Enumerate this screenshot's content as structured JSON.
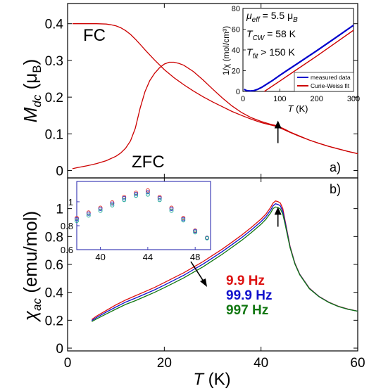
{
  "colors": {
    "fc_zfc": "#cc0000",
    "f1": "#dd1111",
    "f2": "#1111cc",
    "f3": "#117711",
    "inset_meas": "#0000cc",
    "inset_fit": "#cc0000"
  },
  "chart_data": [
    {
      "id": "mdc",
      "type": "line",
      "xlim": [
        0,
        60
      ],
      "ylim": [
        -0.02,
        0.455
      ],
      "yticks": [
        0,
        0.1,
        0.2,
        0.3,
        0.4
      ],
      "ytick_labels": [
        "0",
        "0.1",
        "0.2",
        "0.3",
        "0.4"
      ],
      "ylabel_main": "M",
      "ylabel_sub": "dc",
      "ylabel_unit_open": " (μ",
      "ylabel_unit_sub": "B",
      "ylabel_unit_close": ")",
      "panel_label": "a)",
      "annotations": {
        "fc": "FC",
        "zfc": "ZFC"
      },
      "arrow_at": [
        43.5,
        0.14
      ],
      "series": [
        {
          "name": "FC",
          "x": [
            1,
            2,
            4,
            6,
            8,
            9,
            10,
            11,
            12,
            13,
            14,
            15,
            16,
            18,
            20,
            22,
            24,
            26,
            28,
            30,
            32,
            34,
            36,
            38,
            40,
            42,
            43,
            44,
            45,
            46,
            48,
            50,
            52,
            54,
            56,
            58,
            60
          ],
          "y": [
            0.4,
            0.4,
            0.4,
            0.4,
            0.399,
            0.397,
            0.394,
            0.389,
            0.381,
            0.371,
            0.358,
            0.344,
            0.329,
            0.301,
            0.275,
            0.253,
            0.234,
            0.217,
            0.201,
            0.187,
            0.174,
            0.161,
            0.15,
            0.14,
            0.131,
            0.124,
            0.121,
            0.116,
            0.11,
            0.104,
            0.093,
            0.083,
            0.074,
            0.066,
            0.059,
            0.052,
            0.046
          ]
        },
        {
          "name": "ZFC",
          "x": [
            1,
            2,
            4,
            6,
            8,
            10,
            11,
            12,
            13,
            14,
            15,
            16,
            17,
            18,
            19,
            20,
            21,
            22,
            23,
            24,
            26,
            28,
            30,
            32,
            34,
            36,
            38,
            40,
            42,
            43,
            44,
            45,
            46,
            48,
            50,
            52,
            54,
            56,
            58,
            60
          ],
          "y": [
            0.005,
            0.008,
            0.013,
            0.019,
            0.027,
            0.039,
            0.048,
            0.061,
            0.081,
            0.115,
            0.17,
            0.215,
            0.245,
            0.265,
            0.28,
            0.29,
            0.295,
            0.295,
            0.292,
            0.287,
            0.27,
            0.247,
            0.222,
            0.198,
            0.176,
            0.158,
            0.144,
            0.134,
            0.126,
            0.123,
            0.118,
            0.112,
            0.105,
            0.094,
            0.083,
            0.074,
            0.066,
            0.059,
            0.052,
            0.046
          ]
        }
      ]
    },
    {
      "id": "mdc_inset",
      "type": "line",
      "xlim": [
        0,
        300
      ],
      "ylim": [
        0,
        80
      ],
      "xticks": [
        0,
        100,
        200,
        300
      ],
      "xtick_labels": [
        "0",
        "100",
        "200",
        "300"
      ],
      "yticks": [
        0,
        20,
        40,
        60,
        80
      ],
      "ytick_labels": [
        "0",
        "20",
        "40",
        "60",
        "80"
      ],
      "xlabel_main": "T",
      "xlabel_unit": " (K)",
      "ylabel": "1/χ (mol/cm³)",
      "params": {
        "mu_main": "μ",
        "mu_sub": "eff",
        "mu_value": " = 5.5 μ",
        "mu_value_sub": "B",
        "tcw_main": "T",
        "tcw_sub": "CW",
        "tcw_value": " = 58 K",
        "tfit_main": "T",
        "tfit_sub": "fit",
        "tfit_value": " > 150 K"
      },
      "series": [
        {
          "name": "measured data",
          "x": [
            3,
            10,
            20,
            30,
            40,
            50,
            60,
            70,
            80,
            100,
            120,
            150,
            200,
            250,
            300
          ],
          "y": [
            2,
            0.8,
            0.5,
            0.8,
            2,
            3.8,
            6,
            8.3,
            10.5,
            15.5,
            20.3,
            27.3,
            39.2,
            51.4,
            63.8
          ]
        },
        {
          "name": "Curie-Weiss fit",
          "x": [
            58,
            100,
            150,
            200,
            250,
            300
          ],
          "y": [
            0,
            10,
            22,
            34,
            46.5,
            59
          ]
        }
      ]
    },
    {
      "id": "chiac",
      "type": "line",
      "xlim": [
        0,
        60
      ],
      "ylim": [
        -0.02,
        1.22
      ],
      "xticks": [
        0,
        20,
        40,
        60
      ],
      "xtick_labels": [
        "0",
        "20",
        "40",
        "60"
      ],
      "yticks": [
        0,
        0.2,
        0.4,
        0.6,
        0.8,
        1
      ],
      "ytick_labels": [
        "0",
        "0.2",
        "0.4",
        "0.6",
        "0.8",
        "1"
      ],
      "xlabel_main": "T",
      "xlabel_unit": " (K)",
      "ylabel_main": "χ",
      "ylabel_sub": "ac",
      "ylabel_unit": " (emu/mol)",
      "panel_label": "b)",
      "arrow_at": [
        43.5,
        0.86
      ],
      "series": [
        {
          "name": "9.9 Hz",
          "x": [
            5,
            6,
            8,
            10,
            12,
            14,
            16,
            18,
            20,
            22,
            24,
            26,
            28,
            30,
            32,
            34,
            36,
            38,
            40,
            41,
            42,
            42.5,
            43,
            43.5,
            44,
            44.5,
            45,
            46,
            47,
            48,
            50,
            52,
            54,
            56,
            58,
            60
          ],
          "y": [
            0.205,
            0.23,
            0.27,
            0.31,
            0.345,
            0.375,
            0.405,
            0.435,
            0.47,
            0.505,
            0.54,
            0.58,
            0.62,
            0.665,
            0.71,
            0.76,
            0.81,
            0.865,
            0.925,
            0.96,
            1.01,
            1.04,
            1.055,
            1.05,
            1.04,
            1.0,
            0.91,
            0.73,
            0.61,
            0.53,
            0.43,
            0.37,
            0.33,
            0.3,
            0.28,
            0.265
          ]
        },
        {
          "name": "99.9 Hz",
          "x": [
            5,
            6,
            8,
            10,
            12,
            14,
            16,
            18,
            20,
            22,
            24,
            26,
            28,
            30,
            32,
            34,
            36,
            38,
            40,
            41,
            42,
            42.5,
            43,
            43.5,
            44,
            44.5,
            45,
            46,
            47,
            48,
            50,
            52,
            54,
            56,
            58,
            60
          ],
          "y": [
            0.198,
            0.22,
            0.258,
            0.295,
            0.33,
            0.358,
            0.388,
            0.418,
            0.452,
            0.487,
            0.522,
            0.562,
            0.602,
            0.647,
            0.692,
            0.742,
            0.792,
            0.847,
            0.907,
            0.942,
            0.99,
            1.02,
            1.035,
            1.03,
            1.02,
            0.98,
            0.9,
            0.725,
            0.607,
            0.528,
            0.428,
            0.369,
            0.329,
            0.299,
            0.279,
            0.265
          ]
        },
        {
          "name": "997 Hz",
          "x": [
            5,
            6,
            8,
            10,
            12,
            14,
            16,
            18,
            20,
            22,
            24,
            26,
            28,
            30,
            32,
            34,
            36,
            38,
            40,
            41,
            42,
            42.5,
            43,
            43.5,
            44,
            44.5,
            45,
            46,
            47,
            48,
            50,
            52,
            54,
            56,
            58,
            60
          ],
          "y": [
            0.19,
            0.21,
            0.245,
            0.28,
            0.313,
            0.34,
            0.37,
            0.4,
            0.433,
            0.468,
            0.503,
            0.543,
            0.583,
            0.628,
            0.673,
            0.723,
            0.773,
            0.828,
            0.888,
            0.923,
            0.97,
            1.0,
            1.012,
            1.008,
            0.998,
            0.96,
            0.885,
            0.72,
            0.604,
            0.526,
            0.426,
            0.368,
            0.328,
            0.298,
            0.278,
            0.265
          ]
        }
      ]
    },
    {
      "id": "chiac_inset",
      "type": "scatter",
      "xlim": [
        38,
        49.3
      ],
      "ylim": [
        0.6,
        1.17
      ],
      "xticks": [
        40,
        44,
        48
      ],
      "xtick_labels": [
        "40",
        "44",
        "48"
      ],
      "yticks": [
        0.6,
        0.8,
        1
      ],
      "ytick_labels": [
        "0.6",
        "0.8",
        "1"
      ],
      "x": [
        38,
        39,
        40,
        41,
        42,
        43,
        44,
        45,
        46,
        47,
        48,
        49
      ],
      "series": [
        {
          "name": "9.9 Hz",
          "y": [
            0.865,
            0.91,
            0.95,
            0.995,
            1.04,
            1.075,
            1.095,
            1.04,
            0.95,
            0.865,
            0.76,
            0.7
          ]
        },
        {
          "name": "99.9 Hz",
          "y": [
            0.855,
            0.9,
            0.94,
            0.985,
            1.03,
            1.065,
            1.08,
            1.03,
            0.94,
            0.855,
            0.755,
            0.698
          ]
        },
        {
          "name": "997 Hz",
          "y": [
            0.84,
            0.885,
            0.925,
            0.97,
            1.015,
            1.05,
            1.06,
            1.015,
            0.925,
            0.845,
            0.745,
            0.695
          ]
        }
      ]
    }
  ]
}
